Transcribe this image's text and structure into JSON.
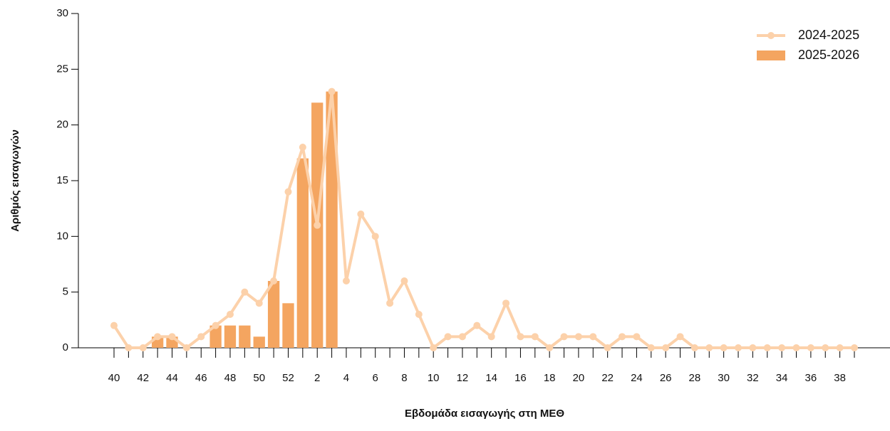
{
  "chart_data": {
    "type": "bar",
    "x_label": "Εβδομάδα εισαγωγής στη ΜΕΘ",
    "y_label": "Αριθμός εισαγωγών",
    "categories": [
      "40",
      null,
      "42",
      null,
      "44",
      null,
      "46",
      null,
      "48",
      null,
      "50",
      null,
      "52",
      null,
      "2",
      null,
      "4",
      null,
      "6",
      null,
      "8",
      null,
      "10",
      null,
      "12",
      null,
      "14",
      null,
      "16",
      null,
      "18",
      null,
      "20",
      null,
      "22",
      null,
      "24",
      null,
      "26",
      null,
      "28",
      null,
      "30",
      null,
      "32",
      null,
      "34",
      null,
      "36",
      null,
      "38",
      null
    ],
    "series": [
      {
        "name": "2024-2025",
        "type": "line",
        "color": "#fcd1aa",
        "values": [
          2,
          0,
          0,
          1,
          1,
          0,
          1,
          2,
          3,
          5,
          4,
          6,
          14,
          18,
          11,
          23,
          6,
          12,
          10,
          4,
          6,
          3,
          0,
          1,
          1,
          2,
          1,
          4,
          1,
          1,
          0,
          1,
          1,
          1,
          0,
          1,
          1,
          0,
          0,
          1,
          0,
          0,
          0,
          0,
          0,
          0,
          0,
          0,
          0,
          0,
          0,
          0
        ]
      },
      {
        "name": "2025-2026",
        "type": "bar",
        "color": "#f4a560",
        "values": [
          0,
          0,
          0,
          1,
          1,
          0,
          0,
          2,
          2,
          2,
          1,
          6,
          4,
          17,
          22,
          23,
          null,
          null,
          null,
          null,
          null,
          null,
          null,
          null,
          null,
          null,
          null,
          null,
          null,
          null,
          null,
          null,
          null,
          null,
          null,
          null,
          null,
          null,
          null,
          null,
          null,
          null,
          null,
          null,
          null,
          null,
          null,
          null,
          null,
          null,
          null,
          null
        ]
      }
    ],
    "ylim": [
      0,
      30
    ],
    "yticks": [
      0,
      5,
      10,
      15,
      20,
      25,
      30
    ],
    "legend": "top-right"
  }
}
